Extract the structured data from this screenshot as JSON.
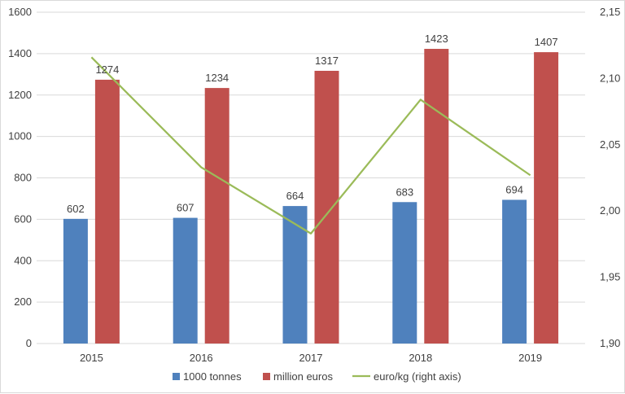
{
  "chart_data": {
    "type": "bar",
    "categories": [
      "2015",
      "2016",
      "2017",
      "2018",
      "2019"
    ],
    "series": [
      {
        "name": "1000 tonnes",
        "kind": "bar",
        "axis": "left",
        "color": "#4f81bd",
        "values": [
          602,
          607,
          664,
          683,
          694
        ]
      },
      {
        "name": "million euros",
        "kind": "bar",
        "axis": "left",
        "color": "#c0504d",
        "values": [
          1274,
          1234,
          1317,
          1423,
          1407
        ]
      },
      {
        "name": "euro/kg (right axis)",
        "kind": "line",
        "axis": "right",
        "color": "#9bbb59",
        "values": [
          2.116,
          2.033,
          1.983,
          2.084,
          2.027
        ]
      }
    ],
    "y_left": {
      "min": 0,
      "max": 1600,
      "step": 200,
      "ticks": [
        "0",
        "200",
        "400",
        "600",
        "800",
        "1000",
        "1200",
        "1400",
        "1600"
      ]
    },
    "y_right": {
      "min": 1.9,
      "max": 2.15,
      "step": 0.05,
      "ticks": [
        "1,90",
        "1,95",
        "2,00",
        "2,05",
        "2,10",
        "2,15"
      ]
    },
    "grid": true,
    "legend_position": "bottom"
  }
}
